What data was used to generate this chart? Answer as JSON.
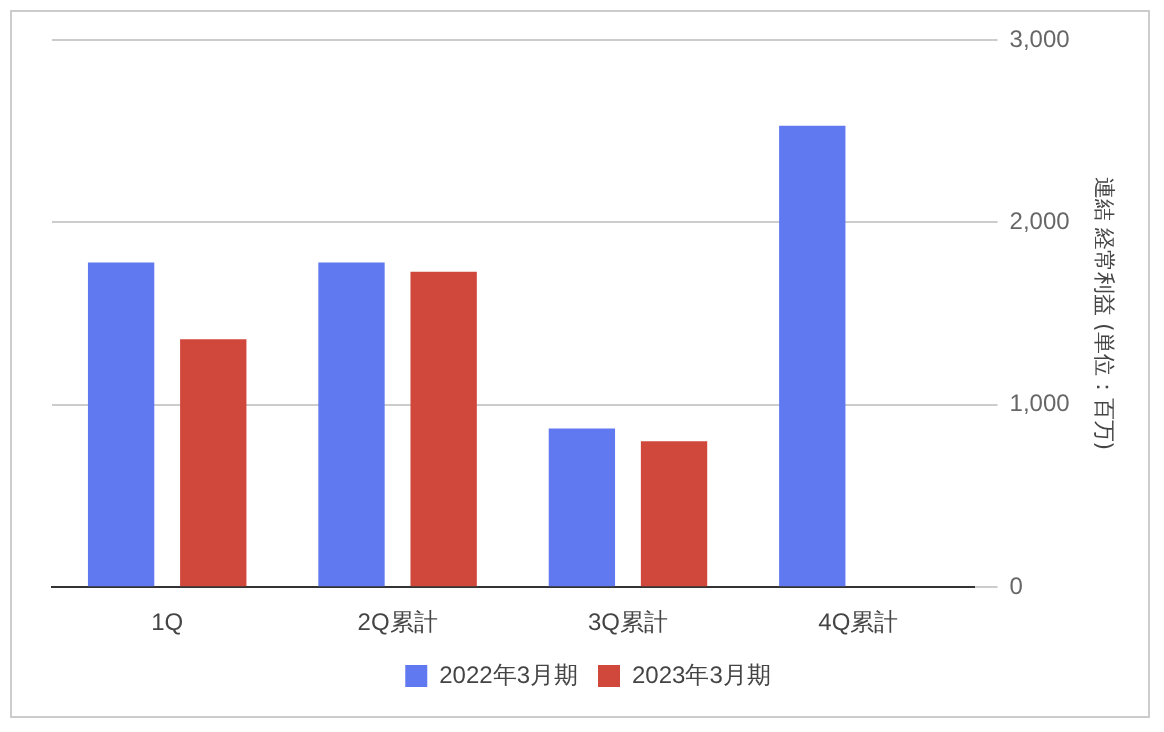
{
  "chart_data": {
    "type": "bar",
    "categories": [
      "1Q",
      "2Q累計",
      "3Q累計",
      "4Q累計"
    ],
    "series": [
      {
        "name": "2022年3月期",
        "color": "#6079f0",
        "values": [
          1780,
          1780,
          870,
          2530
        ]
      },
      {
        "name": "2023年3月期",
        "color": "#d0473b",
        "values": [
          1360,
          1730,
          800,
          null
        ]
      }
    ],
    "ylabel": "連結 経常利益 (単位：百万)",
    "ylim": [
      0,
      3000
    ],
    "yticks": [
      {
        "value": 0,
        "label": "0"
      },
      {
        "value": 1000,
        "label": "1,000"
      },
      {
        "value": 2000,
        "label": "2,000"
      },
      {
        "value": 3000,
        "label": "3,000"
      }
    ],
    "grid": "y",
    "legend": "bottom"
  }
}
